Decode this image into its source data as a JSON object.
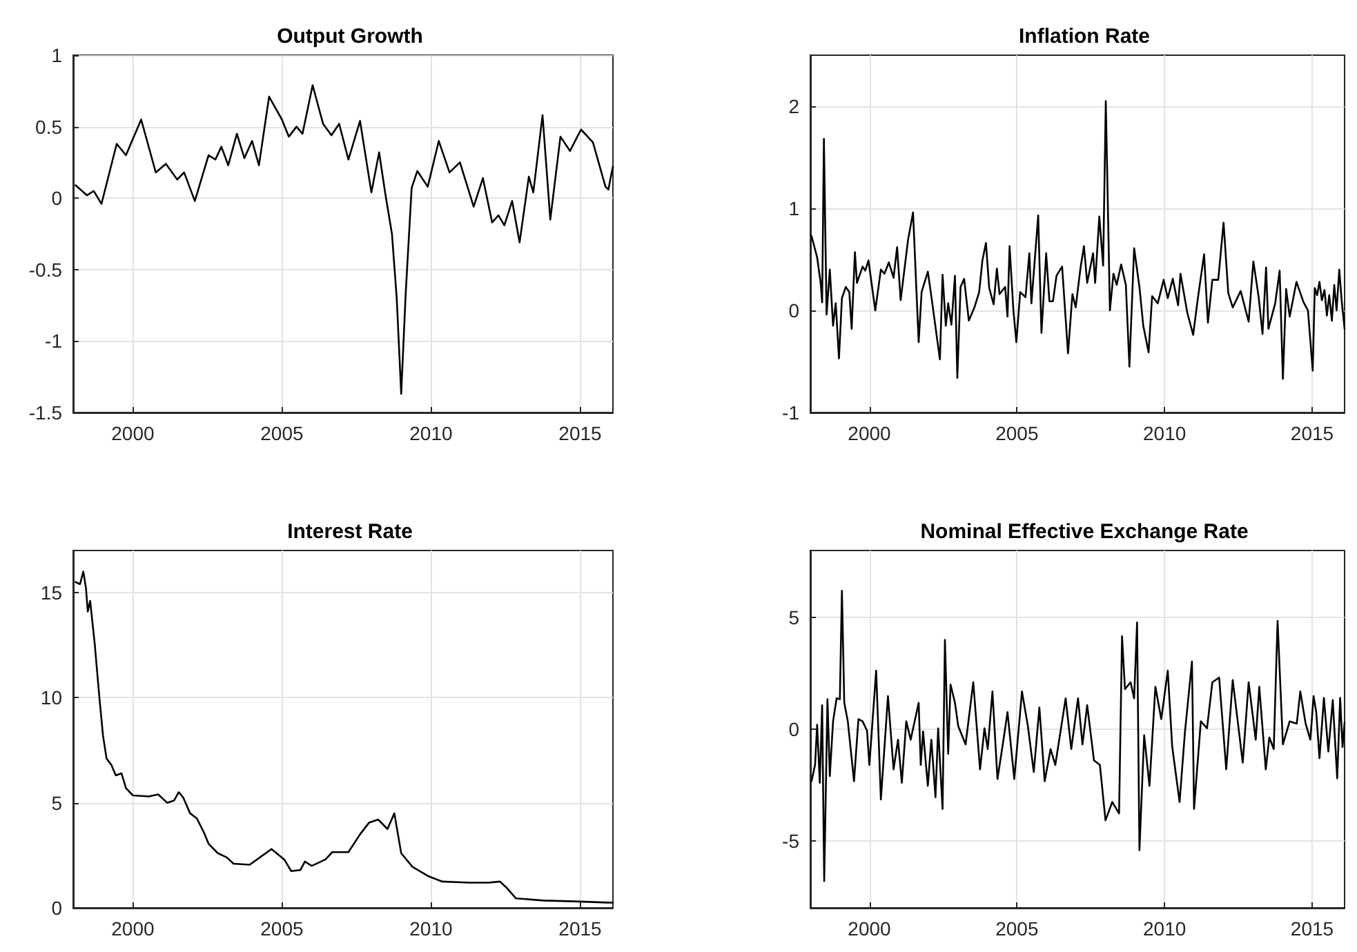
{
  "chart_data": [
    {
      "type": "line",
      "title": "Output Growth",
      "color": "#000000",
      "grid": true,
      "xlim": [
        1998,
        2016.1
      ],
      "xticks": [
        2000,
        2005,
        2010,
        2015
      ],
      "ylim": [
        -1.5,
        1
      ],
      "yticks": [
        -1.5,
        -1,
        -0.5,
        0,
        0.5,
        1
      ],
      "x": [
        1998.08,
        1998.46,
        1998.69,
        1998.95,
        1999.46,
        1999.77,
        2000.28,
        2000.77,
        2001.11,
        2001.49,
        2001.72,
        2002.08,
        2002.54,
        2002.77,
        2002.97,
        2003.2,
        2003.49,
        2003.74,
        2004.0,
        2004.23,
        2004.57,
        2005.0,
        2005.23,
        2005.49,
        2005.69,
        2006.03,
        2006.38,
        2006.66,
        2006.92,
        2007.23,
        2007.62,
        2008.0,
        2008.26,
        2008.46,
        2008.69,
        2008.85,
        2009.0,
        2009.15,
        2009.35,
        2009.54,
        2009.89,
        2010.26,
        2010.62,
        2010.97,
        2011.43,
        2011.74,
        2012.05,
        2012.26,
        2012.46,
        2012.72,
        2012.97,
        2013.28,
        2013.43,
        2013.74,
        2014.0,
        2014.34,
        2014.66,
        2015.03,
        2015.43,
        2015.85,
        2015.95,
        2016.03,
        2016.1
      ],
      "values": [
        0.09,
        0.02,
        0.05,
        -0.04,
        0.38,
        0.3,
        0.55,
        0.18,
        0.24,
        0.13,
        0.18,
        -0.02,
        0.3,
        0.27,
        0.36,
        0.23,
        0.45,
        0.28,
        0.4,
        0.23,
        0.71,
        0.55,
        0.43,
        0.5,
        0.45,
        0.79,
        0.52,
        0.44,
        0.52,
        0.27,
        0.54,
        0.04,
        0.32,
        0.04,
        -0.25,
        -0.7,
        -1.37,
        -0.67,
        0.07,
        0.19,
        0.08,
        0.4,
        0.18,
        0.25,
        -0.06,
        0.14,
        -0.17,
        -0.12,
        -0.19,
        -0.02,
        -0.31,
        0.15,
        0.04,
        0.58,
        -0.15,
        0.43,
        0.33,
        0.48,
        0.39,
        0.08,
        0.06,
        0.15,
        0.22
      ]
    },
    {
      "type": "line",
      "title": "Inflation Rate",
      "color": "#000000",
      "grid": true,
      "xlim": [
        1998,
        2016.1
      ],
      "xticks": [
        2000,
        2005,
        2010,
        2015
      ],
      "ylim": [
        -1,
        2.5
      ],
      "yticks": [
        -1,
        0,
        1,
        2
      ],
      "x": [
        1998.04,
        1998.23,
        1998.35,
        1998.4,
        1998.46,
        1998.55,
        1998.66,
        1998.77,
        1998.86,
        1998.97,
        1999.07,
        1999.2,
        1999.32,
        1999.4,
        1999.51,
        1999.58,
        1999.77,
        1999.86,
        1999.97,
        2000.2,
        2000.39,
        2000.51,
        2000.66,
        2000.82,
        2000.94,
        2001.06,
        2001.31,
        2001.48,
        2001.67,
        2001.77,
        2001.98,
        2002.08,
        2002.39,
        2002.48,
        2002.59,
        2002.67,
        2002.78,
        2002.9,
        2002.98,
        2003.09,
        2003.21,
        2003.37,
        2003.56,
        2003.72,
        2003.83,
        2003.95,
        2004.06,
        2004.21,
        2004.32,
        2004.41,
        2004.6,
        2004.68,
        2004.75,
        2004.88,
        2004.98,
        2005.11,
        2005.29,
        2005.42,
        2005.49,
        2005.72,
        2005.83,
        2005.99,
        2006.1,
        2006.22,
        2006.34,
        2006.53,
        2006.73,
        2006.88,
        2006.99,
        2007.15,
        2007.27,
        2007.38,
        2007.58,
        2007.65,
        2007.79,
        2007.92,
        2008.01,
        2008.15,
        2008.27,
        2008.38,
        2008.53,
        2008.69,
        2008.81,
        2008.97,
        2009.15,
        2009.28,
        2009.46,
        2009.58,
        2009.77,
        2009.97,
        2010.11,
        2010.28,
        2010.46,
        2010.54,
        2010.77,
        2010.97,
        2011.13,
        2011.34,
        2011.47,
        2011.62,
        2011.82,
        2012.0,
        2012.16,
        2012.31,
        2012.58,
        2012.85,
        2013.01,
        2013.19,
        2013.32,
        2013.44,
        2013.52,
        2013.75,
        2013.9,
        2014.01,
        2014.12,
        2014.24,
        2014.47,
        2014.71,
        2014.86,
        2015.02,
        2015.09,
        2015.17,
        2015.25,
        2015.33,
        2015.42,
        2015.5,
        2015.58,
        2015.67,
        2015.75,
        2015.83,
        2015.92,
        2016.0,
        2016.1
      ],
      "values": [
        0.73,
        0.52,
        0.27,
        0.08,
        1.68,
        -0.04,
        0.4,
        -0.15,
        0.07,
        -0.47,
        0.12,
        0.23,
        0.18,
        -0.18,
        0.57,
        0.27,
        0.43,
        0.39,
        0.49,
        0.0,
        0.4,
        0.36,
        0.47,
        0.32,
        0.62,
        0.1,
        0.69,
        0.96,
        -0.31,
        0.18,
        0.38,
        0.18,
        -0.48,
        0.35,
        -0.15,
        0.07,
        -0.14,
        0.34,
        -0.66,
        0.23,
        0.31,
        -0.1,
        0.03,
        0.18,
        0.49,
        0.66,
        0.22,
        0.06,
        0.41,
        0.16,
        0.23,
        -0.06,
        0.63,
        0.0,
        -0.31,
        0.18,
        0.13,
        0.56,
        0.07,
        0.93,
        -0.22,
        0.56,
        0.09,
        0.09,
        0.34,
        0.43,
        -0.42,
        0.16,
        0.03,
        0.41,
        0.63,
        0.27,
        0.56,
        0.27,
        0.92,
        0.44,
        2.05,
        0.0,
        0.36,
        0.25,
        0.45,
        0.25,
        -0.55,
        0.61,
        0.23,
        -0.15,
        -0.41,
        0.14,
        0.07,
        0.3,
        0.12,
        0.31,
        0.05,
        0.36,
        -0.02,
        -0.24,
        0.12,
        0.55,
        -0.12,
        0.3,
        0.3,
        0.86,
        0.17,
        0.03,
        0.19,
        -0.11,
        0.48,
        0.13,
        -0.23,
        0.42,
        -0.18,
        0.07,
        0.39,
        -0.67,
        0.21,
        -0.06,
        0.28,
        0.08,
        0.0,
        -0.59,
        0.22,
        0.15,
        0.28,
        0.1,
        0.2,
        -0.05,
        0.15,
        -0.1,
        0.25,
        0.0,
        0.4,
        0.1,
        -0.18
      ]
    },
    {
      "type": "line",
      "title": "Interest Rate",
      "color": "#000000",
      "grid": true,
      "xlim": [
        1998,
        2016.1
      ],
      "xticks": [
        2000,
        2005,
        2010,
        2015
      ],
      "ylim": [
        0,
        17
      ],
      "yticks": [
        0,
        5,
        10,
        15
      ],
      "x": [
        1998.08,
        1998.23,
        1998.34,
        1998.43,
        1998.49,
        1998.57,
        1998.72,
        1998.88,
        1999.0,
        1999.12,
        1999.28,
        1999.43,
        1999.62,
        1999.77,
        2000.0,
        2000.54,
        2000.85,
        2001.15,
        2001.38,
        2001.54,
        2001.69,
        2001.92,
        2002.15,
        2002.38,
        2002.54,
        2002.85,
        2003.15,
        2003.38,
        2003.92,
        2004.31,
        2004.65,
        2005.08,
        2005.31,
        2005.62,
        2005.77,
        2006.0,
        2006.46,
        2006.69,
        2007.23,
        2007.62,
        2007.92,
        2008.23,
        2008.54,
        2008.77,
        2009.0,
        2009.38,
        2009.92,
        2010.38,
        2011.31,
        2011.92,
        2012.31,
        2012.54,
        2012.85,
        2013.77,
        2015.0,
        2015.92,
        2016.1
      ],
      "values": [
        15.5,
        15.4,
        16.0,
        15.2,
        14.1,
        14.6,
        12.6,
        10.0,
        8.2,
        7.1,
        6.8,
        6.3,
        6.4,
        5.7,
        5.35,
        5.3,
        5.4,
        5.0,
        5.1,
        5.5,
        5.25,
        4.5,
        4.25,
        3.6,
        3.05,
        2.6,
        2.4,
        2.1,
        2.05,
        2.45,
        2.8,
        2.3,
        1.75,
        1.8,
        2.2,
        2.0,
        2.3,
        2.65,
        2.65,
        3.5,
        4.05,
        4.2,
        3.75,
        4.5,
        2.6,
        1.95,
        1.5,
        1.25,
        1.2,
        1.2,
        1.25,
        0.95,
        0.45,
        0.35,
        0.3,
        0.25,
        0.25
      ]
    },
    {
      "type": "line",
      "title": "Nominal Effective Exchange Rate",
      "color": "#000000",
      "grid": true,
      "xlim": [
        1998,
        2016.1
      ],
      "xticks": [
        2000,
        2005,
        2010,
        2015
      ],
      "ylim": [
        -8,
        8
      ],
      "yticks": [
        -5,
        0,
        5
      ],
      "x": [
        1998.04,
        1998.16,
        1998.23,
        1998.32,
        1998.4,
        1998.47,
        1998.58,
        1998.66,
        1998.77,
        1998.89,
        1999.0,
        1999.07,
        1999.15,
        1999.27,
        1999.48,
        1999.63,
        1999.77,
        1999.92,
        2000.0,
        2000.23,
        2000.39,
        2000.63,
        2000.82,
        2000.97,
        2001.1,
        2001.25,
        2001.4,
        2001.67,
        2001.74,
        2001.82,
        2001.98,
        2002.1,
        2002.24,
        2002.33,
        2002.48,
        2002.56,
        2002.67,
        2002.75,
        2002.9,
        2003.01,
        2003.26,
        2003.52,
        2003.75,
        2003.9,
        2004.01,
        2004.17,
        2004.34,
        2004.52,
        2004.68,
        2004.91,
        2005.17,
        2005.37,
        2005.57,
        2005.76,
        2005.94,
        2006.14,
        2006.3,
        2006.65,
        2006.84,
        2007.07,
        2007.22,
        2007.38,
        2007.61,
        2007.81,
        2008.0,
        2008.23,
        2008.46,
        2008.56,
        2008.66,
        2008.85,
        2008.97,
        2009.07,
        2009.15,
        2009.31,
        2009.49,
        2009.69,
        2009.89,
        2010.11,
        2010.26,
        2010.51,
        2010.69,
        2010.93,
        2011.0,
        2011.23,
        2011.44,
        2011.62,
        2011.85,
        2012.09,
        2012.31,
        2012.65,
        2012.85,
        2013.09,
        2013.21,
        2013.43,
        2013.55,
        2013.7,
        2013.83,
        2014.01,
        2014.24,
        2014.48,
        2014.6,
        2014.78,
        2014.94,
        2015.05,
        2015.14,
        2015.25,
        2015.4,
        2015.55,
        2015.7,
        2015.85,
        2015.95,
        2016.03,
        2016.1
      ],
      "values": [
        -2.33,
        -1.6,
        0.2,
        -2.4,
        1.07,
        -6.8,
        1.34,
        -2.1,
        0.35,
        1.38,
        1.34,
        6.2,
        1.18,
        0.35,
        -2.33,
        0.45,
        0.35,
        -0.06,
        -1.6,
        2.62,
        -3.15,
        1.48,
        -1.8,
        -0.47,
        -2.4,
        0.35,
        -0.47,
        1.18,
        -1.6,
        -0.1,
        -2.54,
        -0.47,
        -3.05,
        0.04,
        -3.57,
        4.0,
        -1.1,
        2.0,
        1.18,
        0.14,
        -0.68,
        2.1,
        -1.8,
        0.04,
        -0.89,
        1.69,
        -2.23,
        -0.68,
        0.76,
        -2.23,
        1.69,
        0.14,
        -1.92,
        0.97,
        -2.33,
        -0.89,
        -1.6,
        1.38,
        -0.89,
        1.38,
        -0.68,
        1.07,
        -1.4,
        -1.6,
        -4.08,
        -3.26,
        -3.77,
        4.16,
        1.79,
        2.1,
        1.38,
        4.78,
        -5.42,
        -0.27,
        -2.54,
        1.9,
        0.45,
        2.62,
        -0.78,
        -3.26,
        -0.16,
        3.03,
        -3.57,
        0.35,
        0.04,
        2.1,
        2.31,
        -1.8,
        2.2,
        -1.5,
        2.1,
        -0.47,
        1.9,
        -1.8,
        -0.37,
        -0.89,
        4.85,
        -0.68,
        0.35,
        0.25,
        1.69,
        0.25,
        -0.47,
        1.48,
        0.76,
        -1.3,
        1.4,
        -1.0,
        1.3,
        -2.2,
        1.4,
        -0.8,
        0.3
      ]
    }
  ]
}
